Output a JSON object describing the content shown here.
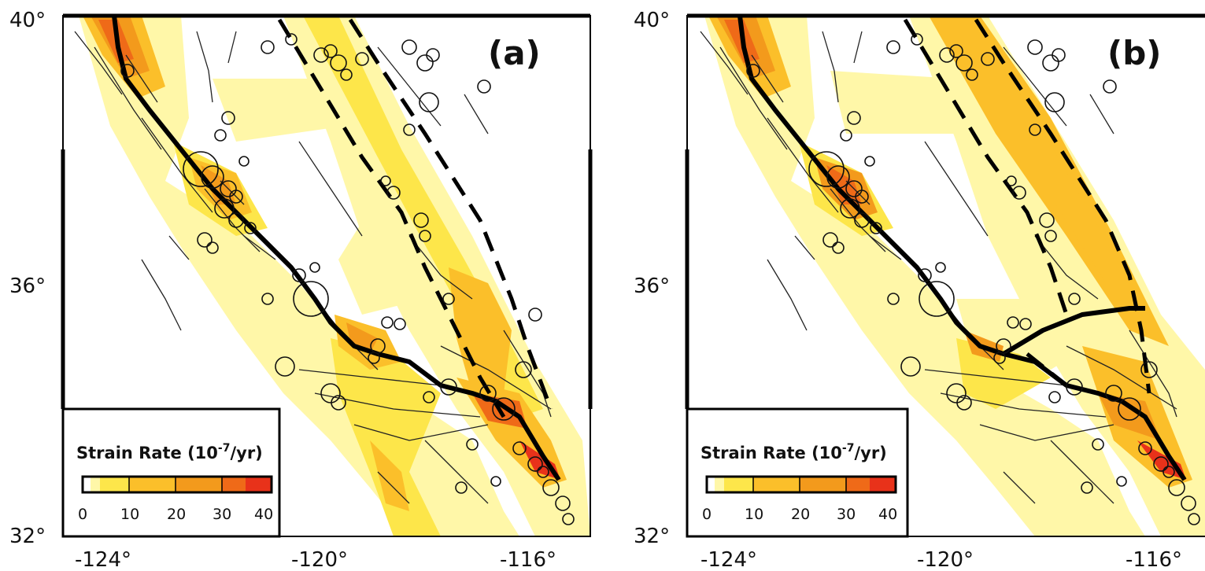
{
  "colors": {
    "plate_boundary": "#000000",
    "fault": "#222222",
    "strain_0": "#ffffff",
    "strain_low": "#fff7a8",
    "strain_10": "#fde64a",
    "strain_mid": "#fbbf2a",
    "strain_20": "#f39a1c",
    "strain_30": "#ef6a18",
    "strain_40": "#e8321a"
  },
  "axes": {
    "x_ticks": [
      "-124°",
      "-120°",
      "-116°"
    ],
    "y_ticks": [
      "40°",
      "36°",
      "32°"
    ]
  },
  "legend": {
    "title_prefix": "Strain Rate (10",
    "title_exp": "-7",
    "title_suffix": "/yr)",
    "ticks": [
      "0",
      "10",
      "20",
      "30",
      "40"
    ]
  },
  "panels": [
    {
      "label": "(a)"
    },
    {
      "label": "(b)"
    }
  ]
}
